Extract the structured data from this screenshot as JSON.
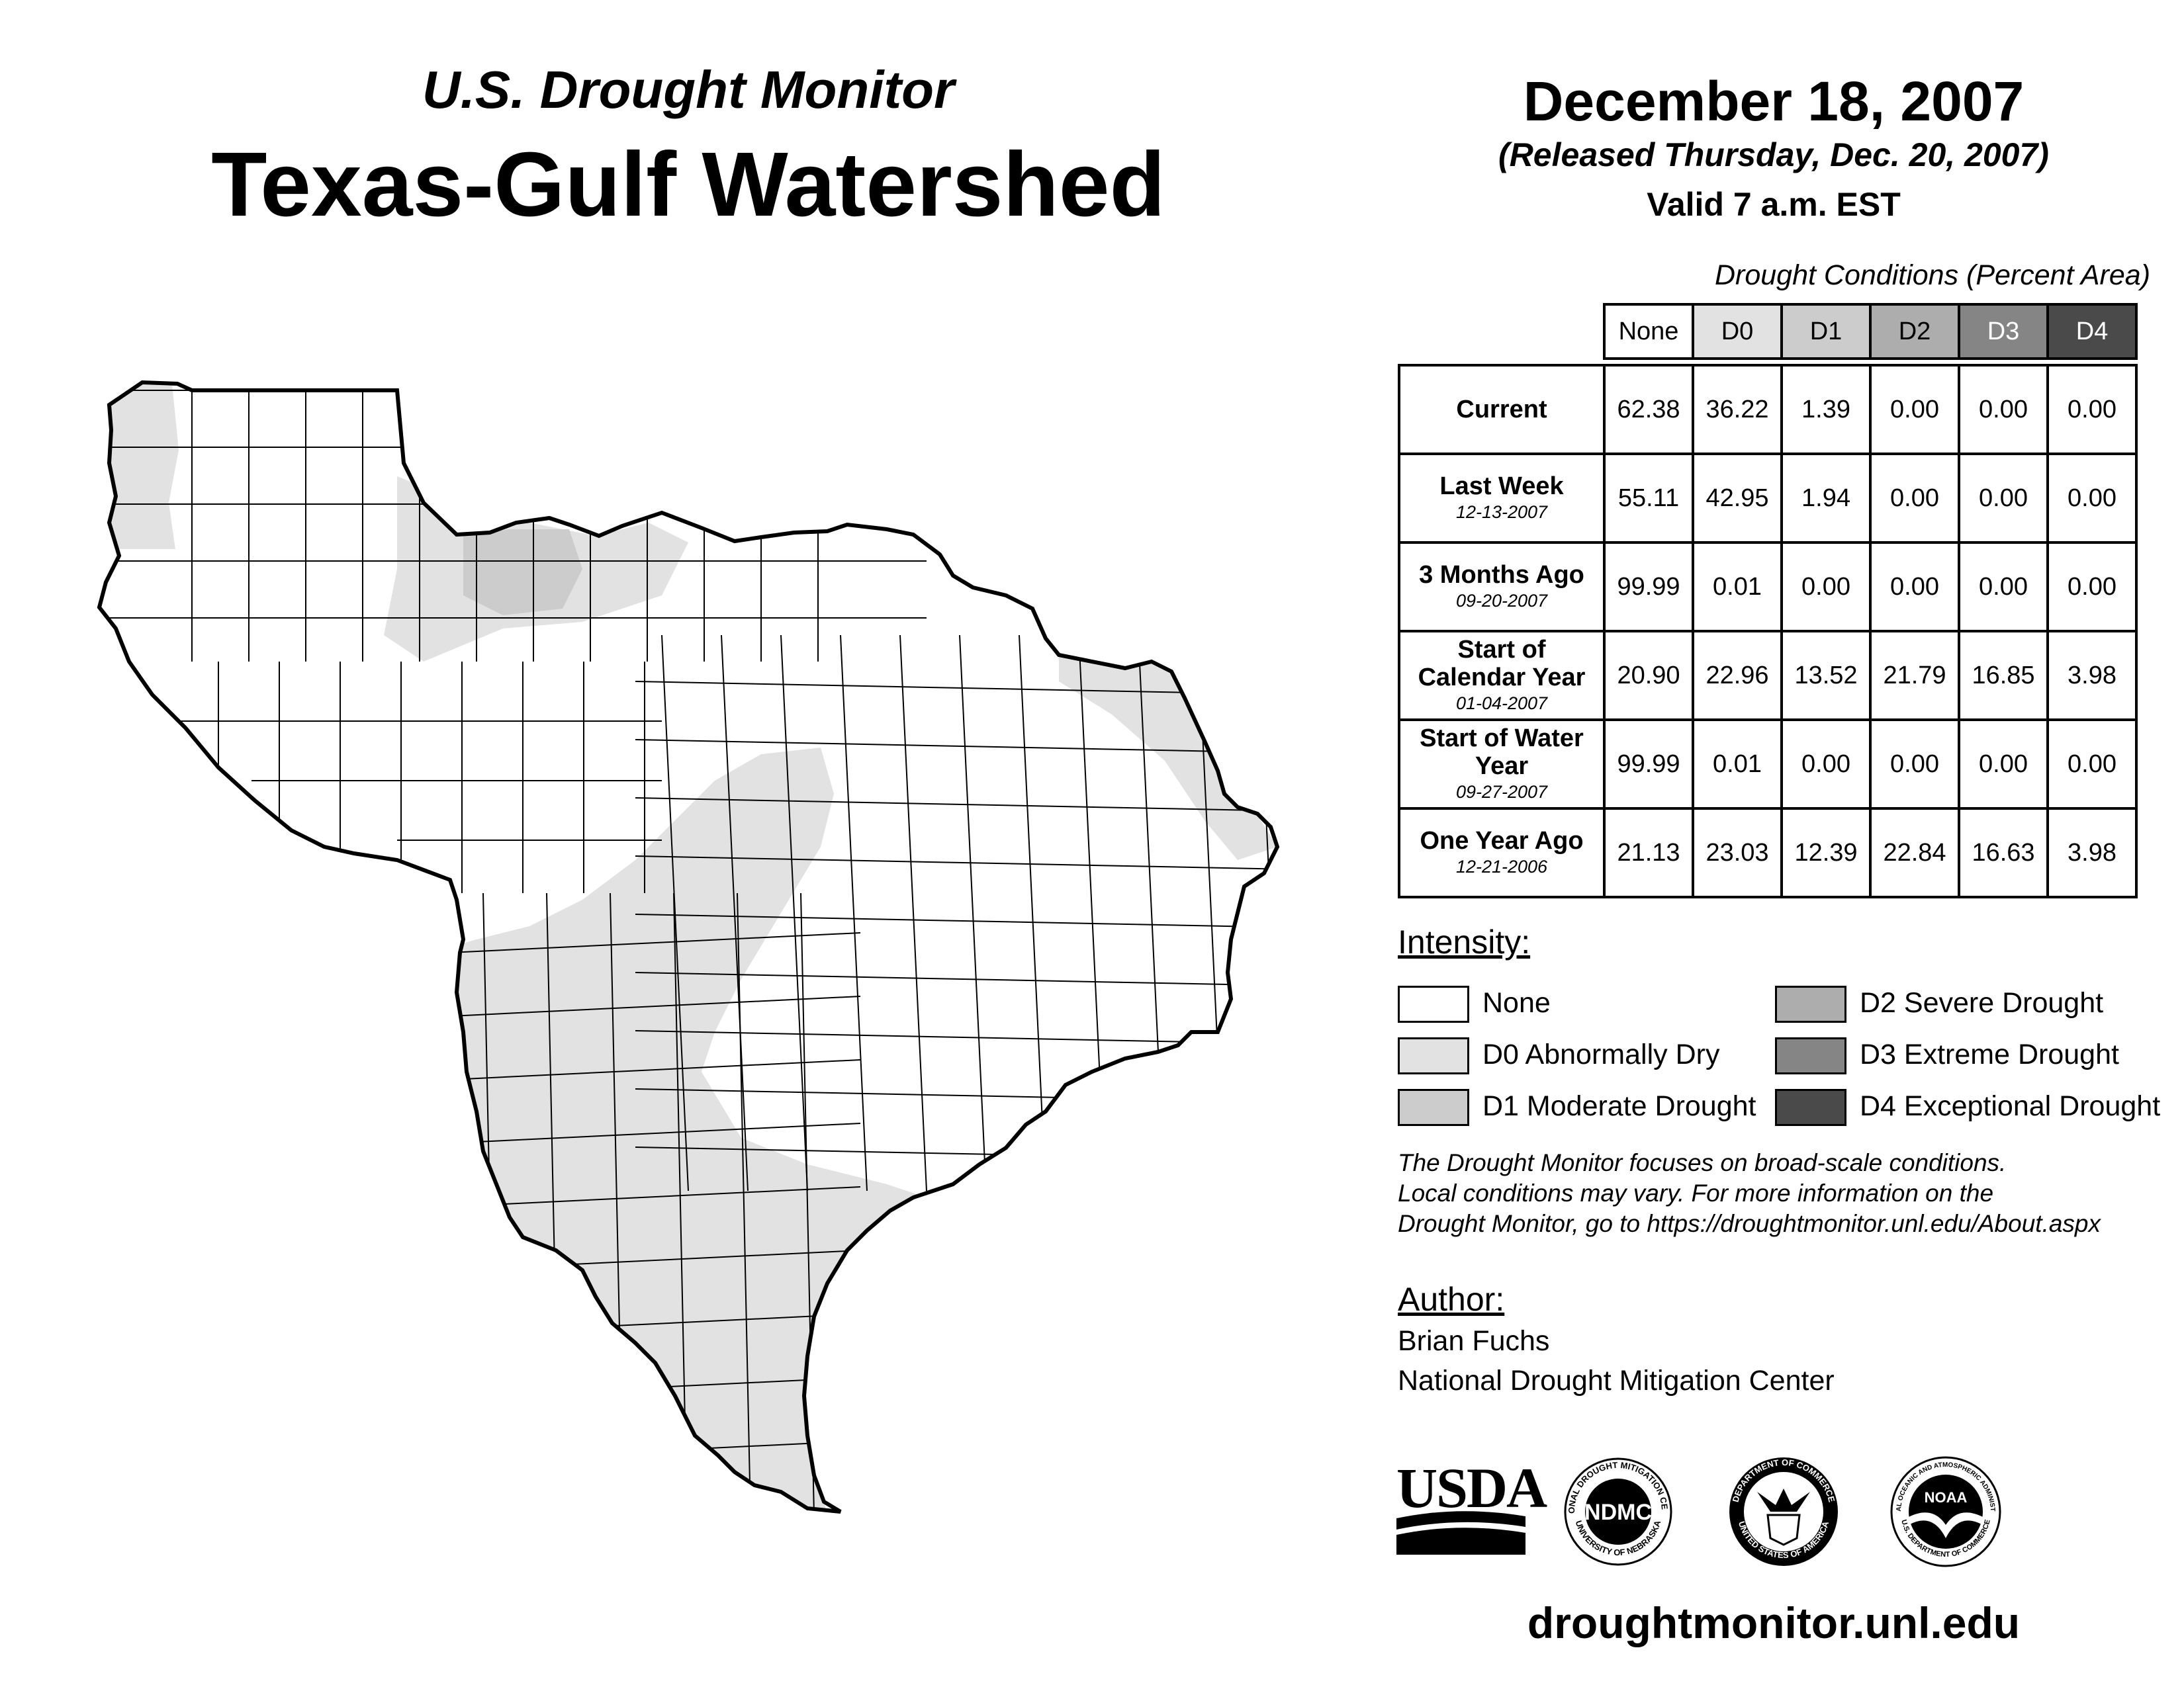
{
  "header": {
    "subtitle": "U.S. Drought Monitor",
    "title": "Texas-Gulf Watershed",
    "date": "December 18, 2007",
    "released": "(Released Thursday, Dec. 20, 2007)",
    "valid": "Valid 7 a.m. EST"
  },
  "table": {
    "title": "Drought Conditions (Percent Area)",
    "columns": [
      "None",
      "D0",
      "D1",
      "D2",
      "D3",
      "D4"
    ],
    "rows": [
      {
        "label": "Current",
        "date": "",
        "values": [
          "62.38",
          "36.22",
          "1.39",
          "0.00",
          "0.00",
          "0.00"
        ]
      },
      {
        "label": "Last Week",
        "date": "12-13-2007",
        "values": [
          "55.11",
          "42.95",
          "1.94",
          "0.00",
          "0.00",
          "0.00"
        ]
      },
      {
        "label": "3 Months Ago",
        "date": "09-20-2007",
        "values": [
          "99.99",
          "0.01",
          "0.00",
          "0.00",
          "0.00",
          "0.00"
        ]
      },
      {
        "label": "Start of Calendar Year",
        "date": "01-04-2007",
        "values": [
          "20.90",
          "22.96",
          "13.52",
          "21.79",
          "16.85",
          "3.98"
        ]
      },
      {
        "label": "Start of Water Year",
        "date": "09-27-2007",
        "values": [
          "99.99",
          "0.01",
          "0.00",
          "0.00",
          "0.00",
          "0.00"
        ]
      },
      {
        "label": "One Year Ago",
        "date": "12-21-2006",
        "values": [
          "21.13",
          "23.03",
          "12.39",
          "22.84",
          "16.63",
          "3.98"
        ]
      }
    ]
  },
  "legend": {
    "title": "Intensity:",
    "items": [
      {
        "label": "None",
        "color": "#ffffff"
      },
      {
        "label": "D0 Abnormally Dry",
        "color": "#e2e2e2"
      },
      {
        "label": "D1 Moderate Drought",
        "color": "#cccccc"
      },
      {
        "label": "D2 Severe Drought",
        "color": "#adadad"
      },
      {
        "label": "D3 Extreme Drought",
        "color": "#858585"
      },
      {
        "label": "D4 Exceptional Drought",
        "color": "#4a4a4a"
      }
    ]
  },
  "note": {
    "line1": "The Drought Monitor focuses on broad-scale conditions.",
    "line2": "Local conditions may vary. For more information on the",
    "line3": "Drought Monitor, go to https://droughtmonitor.unl.edu/About.aspx"
  },
  "author": {
    "title": "Author:",
    "name": "Brian Fuchs",
    "org": "National Drought Mitigation Center"
  },
  "logos": {
    "usda": "USDA",
    "ndmc": "NDMC",
    "ndmc_ring_top": "NATIONAL DROUGHT MITIGATION CENTER",
    "ndmc_ring_bottom": "UNIVERSITY OF NEBRASKA",
    "doc_ring_top": "DEPARTMENT OF COMMERCE",
    "doc_ring_bottom": "UNITED STATES OF AMERICA",
    "noaa": "NOAA",
    "noaa_ring_top": "NATIONAL OCEANIC AND ATMOSPHERIC ADMINISTRATION",
    "noaa_ring_bottom": "U.S. DEPARTMENT OF COMMERCE"
  },
  "footer": {
    "url": "droughtmonitor.unl.edu"
  },
  "map_shading": {
    "none_color": "#ffffff",
    "d0_color": "#e2e2e2",
    "d1_color": "#cccccc",
    "county_line": "#000000"
  }
}
